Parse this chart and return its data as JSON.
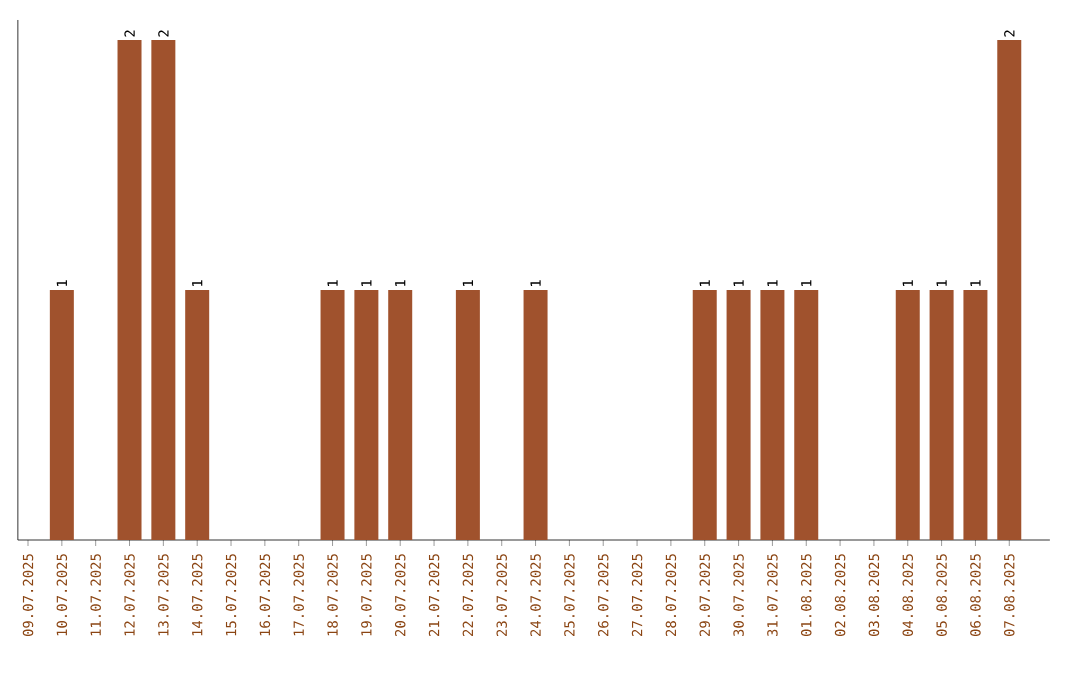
{
  "chart_data": {
    "type": "bar",
    "categories": [
      "09.07.2025",
      "10.07.2025",
      "11.07.2025",
      "12.07.2025",
      "13.07.2025",
      "14.07.2025",
      "15.07.2025",
      "16.07.2025",
      "17.07.2025",
      "18.07.2025",
      "19.07.2025",
      "20.07.2025",
      "21.07.2025",
      "22.07.2025",
      "23.07.2025",
      "24.07.2025",
      "25.07.2025",
      "26.07.2025",
      "27.07.2025",
      "28.07.2025",
      "29.07.2025",
      "30.07.2025",
      "31.07.2025",
      "01.08.2025",
      "02.08.2025",
      "03.08.2025",
      "04.08.2025",
      "05.08.2025",
      "06.08.2025",
      "07.08.2025"
    ],
    "values": [
      0,
      1,
      0,
      2,
      2,
      1,
      0,
      0,
      0,
      1,
      1,
      1,
      0,
      1,
      0,
      1,
      0,
      0,
      0,
      0,
      1,
      1,
      1,
      1,
      0,
      0,
      1,
      1,
      1,
      2
    ],
    "value_labels": [
      null,
      "1",
      null,
      "2",
      "2",
      "1",
      null,
      null,
      null,
      "1",
      "1",
      "1",
      null,
      "1",
      null,
      "1",
      null,
      null,
      null,
      null,
      "1",
      "1",
      "1",
      "1",
      null,
      null,
      "1",
      "1",
      "1",
      "2"
    ],
    "color": "#a0522d",
    "ylim": [
      0,
      2.08
    ],
    "tick_labels": "x"
  }
}
